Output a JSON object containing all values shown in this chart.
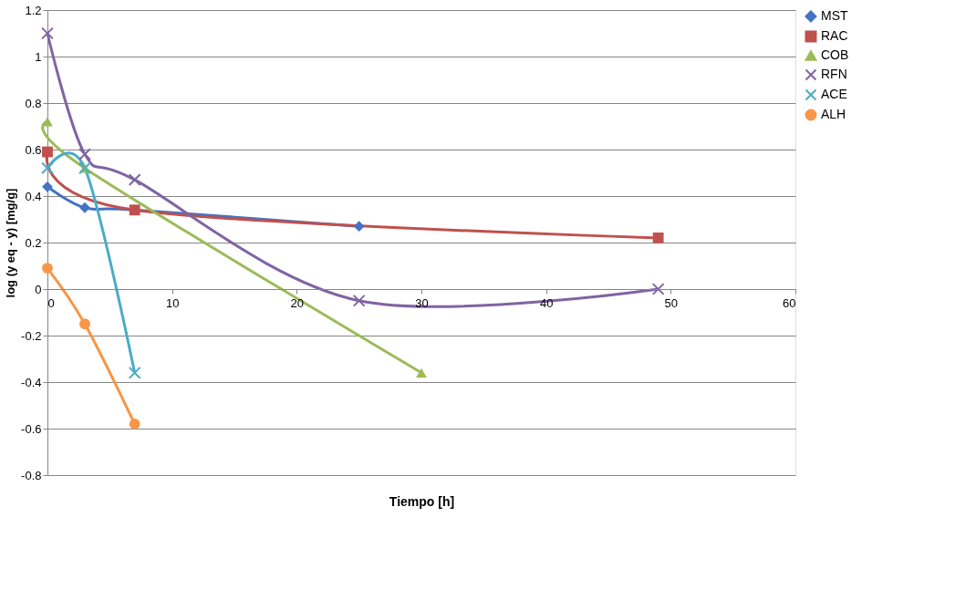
{
  "chart_data": {
    "type": "line",
    "xlabel": "Tiempo [h]",
    "ylabel": "log (y eq - y) [mg/g]",
    "xlim": [
      0,
      60
    ],
    "xticks": [
      0,
      10,
      20,
      30,
      40,
      50,
      60
    ],
    "ylim": [
      -0.8,
      1.2
    ],
    "yticks": [
      -0.8,
      -0.6,
      -0.4,
      -0.2,
      0,
      0.2,
      0.4,
      0.6,
      0.8,
      1,
      1.2
    ],
    "grid": "y",
    "legend": "right",
    "series": [
      {
        "name": "MST",
        "color": "#4472c4",
        "marker": "diamond",
        "x": [
          0,
          3,
          7,
          25
        ],
        "values": [
          0.44,
          0.35,
          0.34,
          0.27
        ]
      },
      {
        "name": "RAC",
        "color": "#c0504d",
        "marker": "square",
        "x": [
          0,
          7,
          49
        ],
        "values": [
          0.59,
          0.34,
          0.22
        ]
      },
      {
        "name": "COB",
        "color": "#9bbb59",
        "marker": "triangle",
        "x": [
          0,
          3,
          30
        ],
        "values": [
          0.72,
          0.52,
          -0.36
        ]
      },
      {
        "name": "RFN",
        "color": "#8064a2",
        "marker": "cross",
        "x": [
          0,
          3,
          7,
          25,
          49
        ],
        "values": [
          1.1,
          0.58,
          0.47,
          -0.05,
          0.0
        ]
      },
      {
        "name": "ACE",
        "color": "#4bacc6",
        "marker": "cross",
        "x": [
          0,
          3,
          7
        ],
        "values": [
          0.52,
          0.52,
          -0.36
        ]
      },
      {
        "name": "ALH",
        "color": "#f79646",
        "marker": "circle",
        "x": [
          0,
          3,
          7
        ],
        "values": [
          0.09,
          -0.15,
          -0.58
        ]
      }
    ]
  }
}
